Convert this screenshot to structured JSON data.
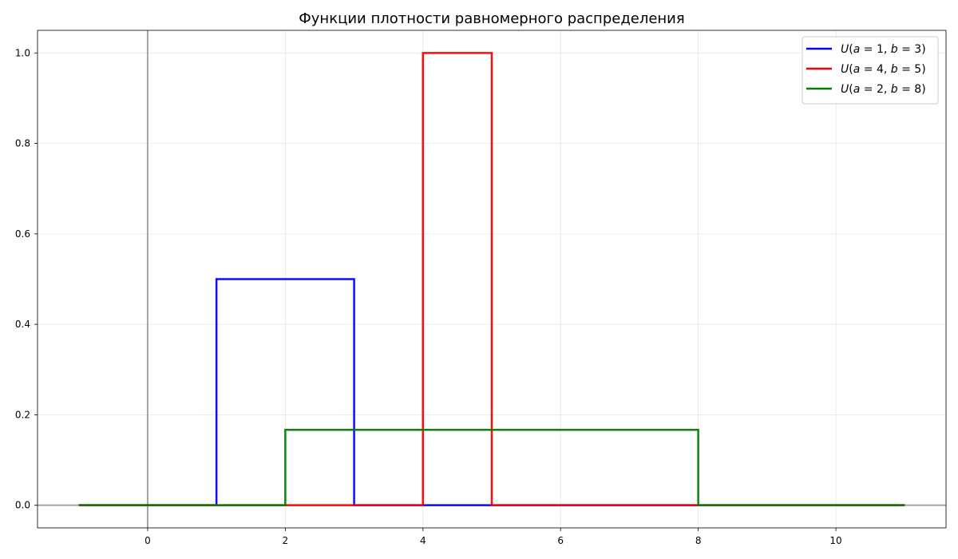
{
  "chart_data": {
    "type": "line",
    "title": "Функции плотности равномерного распределения",
    "xlabel": "",
    "ylabel": "",
    "xlim": [
      -1.6,
      11.6
    ],
    "ylim": [
      -0.05,
      1.05
    ],
    "x_ticks": [
      0,
      2,
      4,
      6,
      8,
      10
    ],
    "y_ticks": [
      0.0,
      0.2,
      0.4,
      0.6,
      0.8,
      1.0
    ],
    "x_tick_labels": [
      "0",
      "2",
      "4",
      "6",
      "8",
      "10"
    ],
    "y_tick_labels": [
      "0.0",
      "0.2",
      "0.4",
      "0.6",
      "0.8",
      "1.0"
    ],
    "grid": true,
    "legend_position": "top-right",
    "reference_lines": {
      "x": 0,
      "y": 0
    },
    "series": [
      {
        "name": "U(a = 1, b = 3)",
        "name_parts": {
          "a": "1",
          "b": "3"
        },
        "color": "#0000ff",
        "x": [
          -1,
          1,
          1,
          3,
          3,
          11
        ],
        "y": [
          0,
          0,
          0.5,
          0.5,
          0,
          0
        ]
      },
      {
        "name": "U(a = 4, b = 5)",
        "name_parts": {
          "a": "4",
          "b": "5"
        },
        "color": "#ff0000",
        "x": [
          -1,
          4,
          4,
          5,
          5,
          11
        ],
        "y": [
          0,
          0,
          1.0,
          1.0,
          0,
          0
        ]
      },
      {
        "name": "U(a = 2, b = 8)",
        "name_parts": {
          "a": "2",
          "b": "8"
        },
        "color": "#008000",
        "x": [
          -1,
          2,
          2,
          8,
          8,
          11
        ],
        "y": [
          0,
          0,
          0.1667,
          0.1667,
          0,
          0
        ]
      }
    ]
  }
}
